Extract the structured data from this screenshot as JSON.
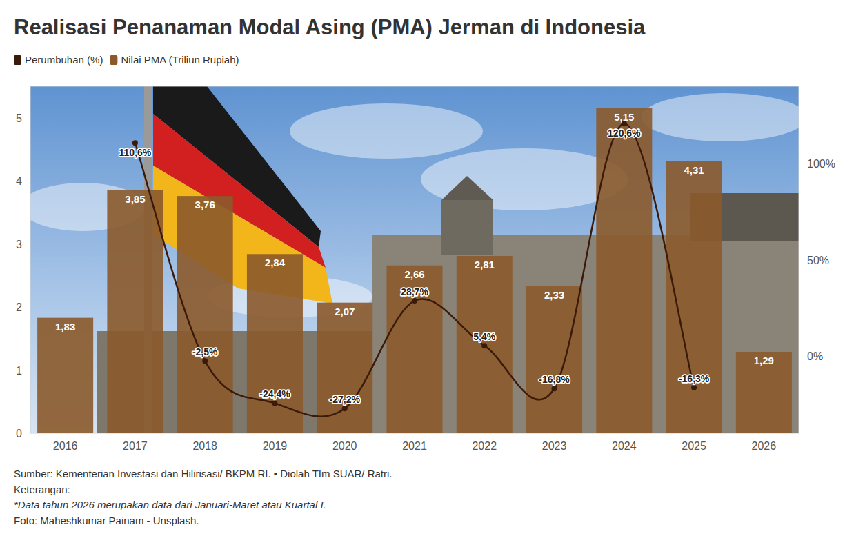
{
  "chart_data": {
    "type": "bar",
    "title": "Realisasi Penanaman Modal Asing (PMA) Jerman di Indonesia",
    "categories": [
      "2016",
      "2017",
      "2018",
      "2019",
      "2020",
      "2021",
      "2022",
      "2023",
      "2024",
      "2025",
      "2026"
    ],
    "series": [
      {
        "name": "Perumbuhan (%)",
        "type": "line",
        "axis": "y2",
        "color": "#3b1a0a",
        "marker": "circle",
        "values": [
          null,
          110.6,
          -2.5,
          -24.4,
          -27.2,
          28.7,
          5.4,
          -16.8,
          120.6,
          -16.3,
          null
        ],
        "value_labels": [
          null,
          "110,6%",
          "-2,5%",
          "-24,4%",
          "-27,2%",
          "28,7%",
          "5,4%",
          "-16,8%",
          "120,6%",
          "-16,3%",
          null
        ]
      },
      {
        "name": "Nilai PMA (Triliun Rupiah)",
        "type": "bar",
        "color": "#8b5a2b",
        "values": [
          1.83,
          3.85,
          3.76,
          2.84,
          2.07,
          2.66,
          2.81,
          2.33,
          5.15,
          4.31,
          1.29
        ],
        "value_labels": [
          "1,83",
          "3,85",
          "3,76",
          "2,84",
          "2,07",
          "2,66",
          "2,81",
          "2,33",
          "5,15",
          "4,31",
          "1,29"
        ]
      }
    ],
    "ylim": [
      0,
      5.5
    ],
    "yticks": [
      0,
      1,
      2,
      3,
      4,
      5
    ],
    "y2lim": [
      -40,
      140
    ],
    "y2ticks": [
      {
        "value": 0,
        "label": "0%"
      },
      {
        "value": 50,
        "label": "50%"
      },
      {
        "value": 100,
        "label": "100%"
      }
    ],
    "data_labels": true,
    "grid": false,
    "legend": "top-left",
    "notes": [
      "Sumber: Kementerian Investasi dan Hilirisasi/ BKPM RI. • Diolah TIm SUAR/ Ratri.",
      "Keterangan:",
      "*Data tahun 2026 merupakan data dari Januari-Maret atau Kuartal I.",
      "Foto: Maheshkumar Painam - Unsplash."
    ]
  }
}
